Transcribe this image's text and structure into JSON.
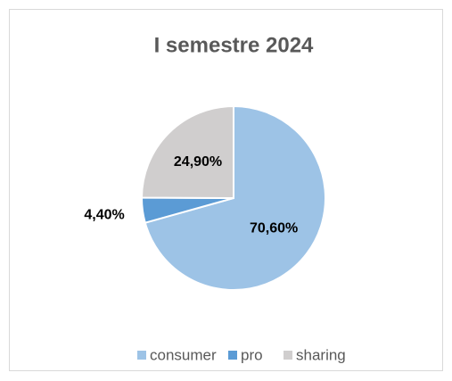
{
  "chart_data": {
    "type": "pie",
    "title": "I semestre 2024",
    "categories": [
      "consumer",
      "pro",
      "sharing"
    ],
    "values": [
      70.6,
      4.4,
      24.9
    ],
    "value_labels": [
      "70,60%",
      "4,40%",
      "24,90%"
    ],
    "colors": [
      "#9dc3e6",
      "#5b9bd5",
      "#d0cece"
    ],
    "legend": "bottom"
  }
}
